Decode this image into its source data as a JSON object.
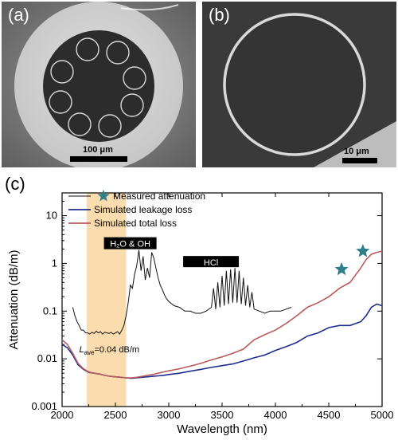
{
  "panel_a": {
    "label": "(a)",
    "scale_label": "100 μm"
  },
  "panel_b": {
    "label": "(b)",
    "scale_label": "10 μm"
  },
  "chart_data": {
    "type": "line",
    "panel_label": "(c)",
    "title": "",
    "xlabel": "Wavelength (nm)",
    "ylabel": "Attenuation (dB/m)",
    "xlim": [
      2000,
      5000
    ],
    "ylim": [
      0.001,
      30
    ],
    "yscale": "log",
    "x_ticks": [
      2000,
      2500,
      3000,
      3500,
      4000,
      4500,
      5000
    ],
    "x_tick_labels": [
      "2000",
      "2500",
      "3000",
      "3500",
      "4000",
      "4500",
      "5000"
    ],
    "y_ticks": [
      0.001,
      0.01,
      0.1,
      1,
      10
    ],
    "y_tick_labels": [
      "0.001",
      "0.01",
      "0.1",
      "1",
      "10"
    ],
    "grid": false,
    "legend_position": "top-left",
    "legend": [
      "Measured attenuation",
      "Simulated leakage loss",
      "Simulated total loss"
    ],
    "shaded_band": {
      "x0": 2230,
      "x1": 2600,
      "color": "#fbdcae"
    },
    "annotations": [
      {
        "text": "H₂O & OH",
        "x": 2900,
        "y": 2.7
      },
      {
        "text": "HCl",
        "x": 3620,
        "y": 1.05
      },
      {
        "text_main": "L",
        "text_sub": "ave",
        "text_rest": "=0.04 dB/m",
        "x": 2400,
        "y": 0.016
      }
    ],
    "series": [
      {
        "name": "Measured attenuation",
        "color": "#111111",
        "style": "line",
        "x": [
          2100,
          2120,
          2140,
          2160,
          2180,
          2200,
          2220,
          2240,
          2260,
          2280,
          2300,
          2320,
          2340,
          2360,
          2380,
          2400,
          2420,
          2440,
          2460,
          2480,
          2500,
          2520,
          2540,
          2560,
          2580,
          2600,
          2620,
          2640,
          2660,
          2680,
          2700,
          2720,
          2740,
          2760,
          2780,
          2800,
          2820,
          2840,
          2860,
          2880,
          2900,
          2920,
          2940,
          2960,
          2980,
          3000,
          3050,
          3100,
          3150,
          3200,
          3250,
          3300,
          3350,
          3400,
          3420,
          3440,
          3460,
          3480,
          3500,
          3520,
          3540,
          3560,
          3580,
          3600,
          3620,
          3640,
          3660,
          3680,
          3700,
          3720,
          3740,
          3760,
          3780,
          3800,
          3850,
          3900,
          3950,
          4000,
          4050,
          4100,
          4150
        ],
        "y": [
          0.12,
          0.08,
          0.06,
          0.05,
          0.04,
          0.04,
          0.035,
          0.035,
          0.033,
          0.036,
          0.034,
          0.038,
          0.035,
          0.037,
          0.033,
          0.036,
          0.035,
          0.034,
          0.036,
          0.033,
          0.035,
          0.037,
          0.033,
          0.04,
          0.05,
          0.08,
          0.15,
          0.35,
          0.3,
          0.6,
          0.9,
          1.9,
          0.7,
          1.4,
          0.45,
          0.8,
          0.5,
          1.7,
          1.3,
          0.8,
          0.5,
          0.35,
          0.28,
          0.22,
          0.18,
          0.16,
          0.13,
          0.12,
          0.1,
          0.1,
          0.09,
          0.09,
          0.1,
          0.12,
          0.3,
          0.11,
          0.4,
          0.12,
          0.55,
          0.13,
          0.7,
          0.14,
          0.75,
          0.15,
          0.8,
          0.15,
          0.7,
          0.14,
          0.5,
          0.13,
          0.35,
          0.12,
          0.25,
          0.11,
          0.1,
          0.09,
          0.1,
          0.1,
          0.1,
          0.11,
          0.12
        ]
      },
      {
        "name": "Simulated leakage loss",
        "color": "#1f2d8f",
        "style": "line",
        "x": [
          2000,
          2050,
          2100,
          2150,
          2200,
          2250,
          2300,
          2350,
          2400,
          2450,
          2500,
          2550,
          2600,
          2650,
          2700,
          2750,
          2800,
          2850,
          2900,
          2950,
          3000,
          3100,
          3200,
          3300,
          3400,
          3500,
          3600,
          3700,
          3800,
          3900,
          4000,
          4100,
          4200,
          4300,
          4400,
          4500,
          4600,
          4700,
          4800,
          4850,
          4900,
          4950,
          5000
        ],
        "y": [
          0.02,
          0.017,
          0.012,
          0.0075,
          0.006,
          0.0052,
          0.005,
          0.0048,
          0.0045,
          0.0043,
          0.0042,
          0.0041,
          0.004,
          0.0039,
          0.004,
          0.0041,
          0.0042,
          0.0043,
          0.0044,
          0.0045,
          0.0047,
          0.005,
          0.0055,
          0.006,
          0.0066,
          0.0072,
          0.0078,
          0.009,
          0.0105,
          0.012,
          0.015,
          0.018,
          0.022,
          0.03,
          0.035,
          0.045,
          0.05,
          0.05,
          0.06,
          0.08,
          0.12,
          0.14,
          0.13
        ]
      },
      {
        "name": "Simulated total loss",
        "color": "#b95b5b",
        "style": "line",
        "x": [
          2000,
          2050,
          2100,
          2150,
          2200,
          2250,
          2300,
          2350,
          2400,
          2450,
          2500,
          2550,
          2600,
          2650,
          2700,
          2750,
          2800,
          2850,
          2900,
          2950,
          3000,
          3100,
          3200,
          3300,
          3400,
          3500,
          3600,
          3700,
          3800,
          3900,
          4000,
          4100,
          4200,
          4300,
          4400,
          4500,
          4600,
          4700,
          4800,
          4850,
          4900,
          4950,
          5000
        ],
        "y": [
          0.025,
          0.02,
          0.013,
          0.008,
          0.0062,
          0.0053,
          0.005,
          0.0048,
          0.0045,
          0.0043,
          0.0042,
          0.0041,
          0.004,
          0.004,
          0.0041,
          0.0043,
          0.0045,
          0.0047,
          0.005,
          0.0053,
          0.0056,
          0.0062,
          0.007,
          0.008,
          0.0095,
          0.011,
          0.013,
          0.016,
          0.025,
          0.032,
          0.04,
          0.055,
          0.08,
          0.12,
          0.15,
          0.2,
          0.3,
          0.4,
          0.8,
          1.2,
          1.55,
          1.7,
          1.8
        ]
      },
      {
        "name": "Measured attenuation (points)",
        "color": "#2f7f8a",
        "style": "star",
        "x": [
          4620,
          4820
        ],
        "y": [
          0.75,
          1.8
        ]
      }
    ]
  }
}
